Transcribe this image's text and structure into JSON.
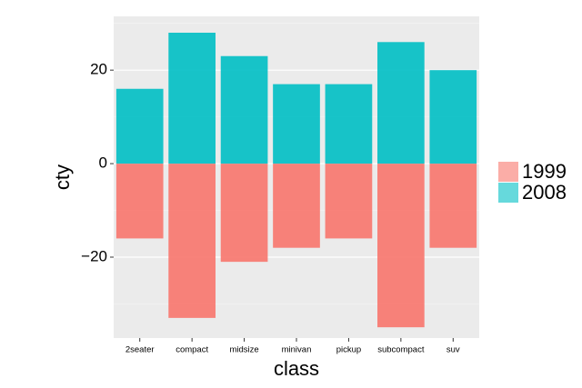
{
  "chart_data": {
    "type": "bar",
    "x_label": "class",
    "y_label": "cty",
    "categories": [
      "2seater",
      "compact",
      "midsize",
      "minivan",
      "pickup",
      "subcompact",
      "suv"
    ],
    "series": [
      {
        "name": "1999",
        "color": "#F8766D",
        "values": [
          -16,
          -33,
          -21,
          -18,
          -16,
          -35,
          -18
        ]
      },
      {
        "name": "2008",
        "color": "#00BFC4",
        "values": [
          16,
          28,
          23,
          17,
          17,
          26,
          20
        ]
      }
    ],
    "ylim": [
      -37.3,
      31.5
    ],
    "yticks": [
      {
        "value": -20,
        "label": "−20"
      },
      0,
      20
    ],
    "grid": true,
    "legend_position": "right"
  }
}
